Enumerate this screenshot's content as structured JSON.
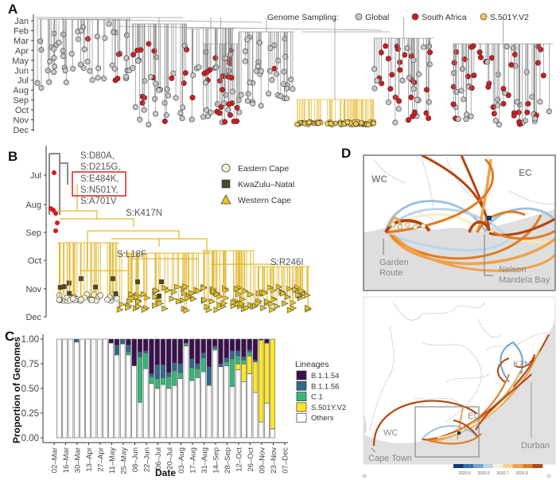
{
  "panels": {
    "a": "A",
    "b": "B",
    "c": "C",
    "d": "D"
  },
  "panel_a": {
    "months": [
      "Jan",
      "Feb",
      "Mar",
      "Apr",
      "May",
      "Jun",
      "Jul",
      "Aug",
      "Sep",
      "Oct",
      "Nov",
      "Dec"
    ],
    "legend_title": "Genome Sampling:",
    "legend": [
      {
        "label": "Global",
        "color": "#c8c8c8"
      },
      {
        "label": "South Africa",
        "color": "#d7191c"
      },
      {
        "label": "S.501Y.V2",
        "color": "#f2c94c"
      }
    ]
  },
  "panel_b": {
    "months": [
      "Jul",
      "Aug",
      "Sep",
      "Oct",
      "Nov",
      "Dec"
    ],
    "mutations_root": [
      "S:D80A,",
      "S:D215G,",
      "S:E484K,",
      "S:N501Y,",
      "S:A701V"
    ],
    "mutation_k417n": "S:K417N",
    "mutation_l18f": "S:L18F",
    "mutation_r246i": "S:R246I",
    "legend": [
      {
        "label": "Eastern Cape",
        "shape": "circle",
        "color": "#f3f0dc"
      },
      {
        "label": "KwaZulu–Natal",
        "shape": "square",
        "color": "#4a4a2a"
      },
      {
        "label": "Western Cape",
        "shape": "triangle",
        "color": "#e6c619"
      }
    ],
    "highlight_color": "#d9342b"
  },
  "panel_d": {
    "top": {
      "wc": "WC",
      "ec": "EC",
      "garden_route": [
        "Garden",
        "Route"
      ],
      "nelson_mandela_bay": [
        "Nelson",
        "Mandela Bay"
      ]
    },
    "bottom": {
      "kzn": "KZN",
      "ec": "EC",
      "wc": "WC",
      "durban": "Durban",
      "cape_town": "Cape Town",
      "axis_left": "18",
      "axis_right": "33"
    },
    "colorbar_ticks": [
      "2020.5",
      "2020.6",
      "2020.7",
      "2020.8"
    ],
    "colorbar_colors": [
      "#0b3a7a",
      "#2f6fb0",
      "#6fa3cf",
      "#b6d3e8",
      "#f3f0d6",
      "#f7d48a",
      "#f0a14a",
      "#e07b22",
      "#b4460f"
    ]
  },
  "chart_data": {
    "type": "bar",
    "stacked": true,
    "xlabel": "Date",
    "ylabel": "Proportion of Genomes",
    "ylim": [
      0,
      1
    ],
    "yticks": [
      "0.00",
      "0.25",
      "0.50",
      "0.75",
      "1.00"
    ],
    "xticks": [
      "02–Mar",
      "16–Mar",
      "30–Mar",
      "13–Apr",
      "27–Apr",
      "11–May",
      "25–May",
      "08–Jun",
      "22–Jun",
      "06–Jul",
      "20–Jul",
      "03–Aug",
      "17–Aug",
      "31–Aug",
      "14–Sep",
      "28–Sep",
      "12–Oct",
      "26–Oct",
      "09–Nov",
      "23–Nov",
      "07–Dec"
    ],
    "legend_title": "Lineages",
    "legend_position": "right",
    "series": [
      {
        "name": "Others",
        "color": "#ffffff",
        "values": [
          1,
          1,
          1,
          0.97,
          1,
          1,
          1,
          1,
          1,
          0.96,
          0.84,
          0.95,
          0.84,
          0.73,
          0.36,
          0.7,
          0.55,
          0.5,
          0.54,
          0.5,
          0.53,
          0.6,
          0.93,
          0.58,
          0.61,
          0.67,
          0.53,
          0.89,
          0.72,
          0.73,
          0.52,
          0.69,
          0.57,
          0.65,
          0.46,
          0.16,
          0.35,
          0.09
        ]
      },
      {
        "name": "S.501Y.V2",
        "color": "#fde725",
        "values": [
          0,
          0,
          0,
          0,
          0,
          0,
          0,
          0,
          0,
          0,
          0,
          0,
          0,
          0,
          0,
          0,
          0,
          0,
          0,
          0,
          0,
          0,
          0,
          0,
          0,
          0,
          0,
          0,
          0,
          0,
          0,
          0.06,
          0.18,
          0.18,
          0.31,
          0.83,
          0.61,
          0.91
        ]
      },
      {
        "name": "C.1",
        "color": "#35b779",
        "values": [
          0,
          0,
          0,
          0,
          0,
          0,
          0,
          0,
          0,
          0,
          0,
          0,
          0.03,
          0,
          0.46,
          0.16,
          0.07,
          0.1,
          0.07,
          0.12,
          0.15,
          0.06,
          0.03,
          0.13,
          0.09,
          0.14,
          0.01,
          0.02,
          0,
          0.04,
          0.28,
          0.08,
          0.04,
          0.04,
          0,
          0,
          0,
          0
        ]
      },
      {
        "name": "B.1.1.56",
        "color": "#31688e",
        "values": [
          0,
          0,
          0,
          0.03,
          0,
          0,
          0,
          0,
          0,
          0,
          0.1,
          0.05,
          0.07,
          0,
          0.05,
          0.02,
          0.03,
          0.14,
          0.13,
          0.04,
          0.08,
          0.09,
          0,
          0.09,
          0.05,
          0.05,
          0.18,
          0.02,
          0.03,
          0.04,
          0.08,
          0.05,
          0.03,
          0.02,
          0.02,
          0,
          0,
          0
        ]
      },
      {
        "name": "B.1.1.54",
        "color": "#3b0f50",
        "values": [
          0,
          0,
          0,
          0,
          0,
          0,
          0,
          0,
          0,
          0.04,
          0.06,
          0,
          0.06,
          0.27,
          0.13,
          0.12,
          0.35,
          0.26,
          0.26,
          0.34,
          0.24,
          0.25,
          0.04,
          0.2,
          0.25,
          0.14,
          0.28,
          0.07,
          0.25,
          0.19,
          0.12,
          0.12,
          0.18,
          0.11,
          0.21,
          0.01,
          0.04,
          0
        ]
      }
    ],
    "legend_order": [
      "B.1.1.54",
      "B.1.1.56",
      "C.1",
      "S.501Y.V2",
      "Others"
    ]
  }
}
